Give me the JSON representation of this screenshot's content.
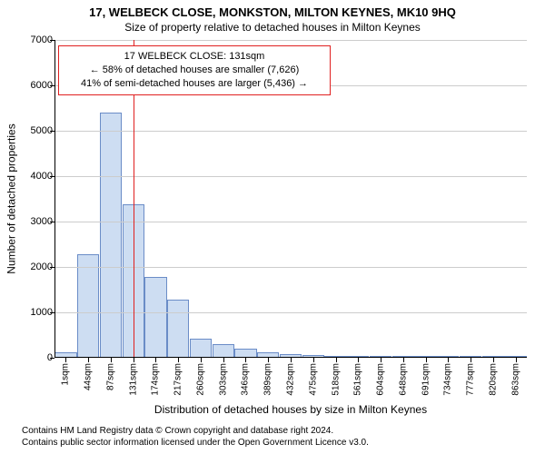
{
  "title": "17, WELBECK CLOSE, MONKSTON, MILTON KEYNES, MK10 9HQ",
  "subtitle": "Size of property relative to detached houses in Milton Keynes",
  "chart": {
    "type": "histogram",
    "background_color": "#ffffff",
    "axis_color": "#000000",
    "grid_color": "#cccccc",
    "bar_fill": "#cdddf2",
    "bar_border": "#6a8cc7",
    "bar_border_width": 1,
    "ylabel": "Number of detached properties",
    "xlabel": "Distribution of detached houses by size in Milton Keynes",
    "label_fontsize": 12,
    "tick_fontsize": 11,
    "ylim": [
      0,
      7000
    ],
    "ytick_step": 1000,
    "y_ticks": [
      0,
      1000,
      2000,
      3000,
      4000,
      5000,
      6000,
      7000
    ],
    "x_categories": [
      "1sqm",
      "44sqm",
      "87sqm",
      "131sqm",
      "174sqm",
      "217sqm",
      "260sqm",
      "303sqm",
      "346sqm",
      "389sqm",
      "432sqm",
      "475sqm",
      "518sqm",
      "561sqm",
      "604sqm",
      "648sqm",
      "691sqm",
      "734sqm",
      "777sqm",
      "820sqm",
      "863sqm"
    ],
    "values": [
      120,
      2280,
      5400,
      3380,
      1780,
      1280,
      420,
      300,
      200,
      130,
      90,
      70,
      50,
      30,
      20,
      10,
      8,
      5,
      4,
      3,
      2
    ],
    "marker": {
      "x_category": "131sqm",
      "color": "#e02020",
      "width": 1
    },
    "callout": {
      "lines": [
        "17 WELBECK CLOSE: 131sqm",
        "← 58% of detached houses are smaller (7,626)",
        "41% of semi-detached houses are larger (5,436) →"
      ],
      "border_color": "#e02020",
      "border_width": 1,
      "background": "#ffffff",
      "fontsize": 11
    }
  },
  "footer": {
    "line1": "Contains HM Land Registry data © Crown copyright and database right 2024.",
    "line2": "Contains public sector information licensed under the Open Government Licence v3.0."
  }
}
